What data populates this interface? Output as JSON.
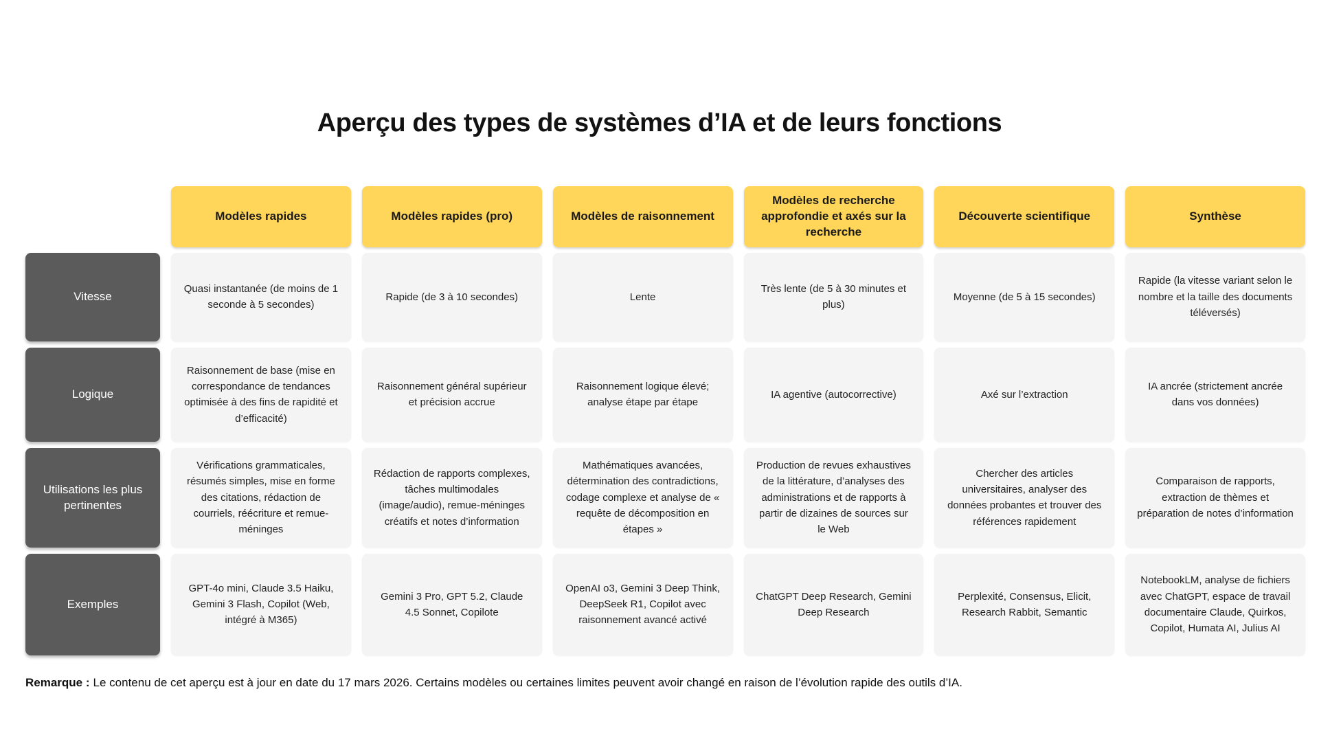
{
  "title": "Aperçu des types de systèmes d’IA et de leurs fonctions",
  "colors": {
    "header_bg": "#FFD55A",
    "row_label_bg": "#5B5B5B",
    "cell_bg": "#F4F4F4",
    "row_label_text": "#FFFFFF",
    "body_text": "#222222"
  },
  "table": {
    "column_headers": [
      "Modèles rapides",
      "Modèles rapides (pro)",
      "Modèles de raisonnement",
      "Modèles de recherche approfondie et axés sur la recherche",
      "Découverte scientifique",
      "Synthèse"
    ],
    "rows": [
      {
        "label": "Vitesse",
        "cells": [
          "Quasi instantanée (de moins de 1 seconde à 5 secondes)",
          "Rapide (de 3 à 10 secondes)",
          "Lente",
          "Très lente (de 5 à 30 minutes et plus)",
          "Moyenne (de 5 à 15 secondes)",
          "Rapide (la vitesse variant selon le nombre et la taille des documents téléversés)"
        ]
      },
      {
        "label": "Logique",
        "cells": [
          "Raisonnement de base (mise en correspondance de tendances optimisée à des fins de rapidité et d’efficacité)",
          "Raisonnement général supérieur et précision accrue",
          "Raisonnement logique élevé; analyse étape par étape",
          "IA agentive (autocorrective)",
          "Axé sur l’extraction",
          "IA ancrée (strictement ancrée dans vos données)"
        ]
      },
      {
        "label": "Utilisations les plus pertinentes",
        "cells": [
          "Vérifications grammaticales, résumés simples, mise en forme des citations, rédaction de courriels, réécriture et remue-méninges",
          "Rédaction de rapports complexes, tâches multimodales (image/audio), remue-méninges créatifs et notes d’information",
          "Mathématiques avancées, détermination des contradictions, codage complexe et analyse de « requête de décomposition en étapes »",
          "Production de revues exhaustives de la littérature, d’analyses des administrations et de rapports à partir de dizaines de sources sur le Web",
          "Chercher des articles universitaires, analyser des données probantes et trouver des références rapidement",
          "Comparaison de rapports, extraction de thèmes et préparation de notes d’information"
        ]
      },
      {
        "label": "Exemples",
        "cells": [
          "GPT-4o mini, Claude 3.5 Haiku, Gemini 3 Flash, Copilot (Web, intégré à M365)",
          "Gemini 3 Pro, GPT 5.2, Claude 4.5 Sonnet, Copilote",
          "OpenAI o3, Gemini 3 Deep Think, DeepSeek R1, Copilot avec raisonnement avancé activé",
          "ChatGPT Deep Research, Gemini Deep Research",
          "Perplexité, Consensus, Elicit, Research Rabbit, Semantic",
          "NotebookLM, analyse de fichiers avec ChatGPT, espace de travail documentaire Claude, Quirkos, Copilot, Humata AI, Julius AI"
        ]
      }
    ]
  },
  "note": {
    "label": "Remarque :",
    "text": "Le contenu de cet aperçu est à jour en date du 17 mars 2026. Certains modèles ou certaines limites peuvent avoir changé en raison de l’évolution rapide des outils d’IA."
  }
}
